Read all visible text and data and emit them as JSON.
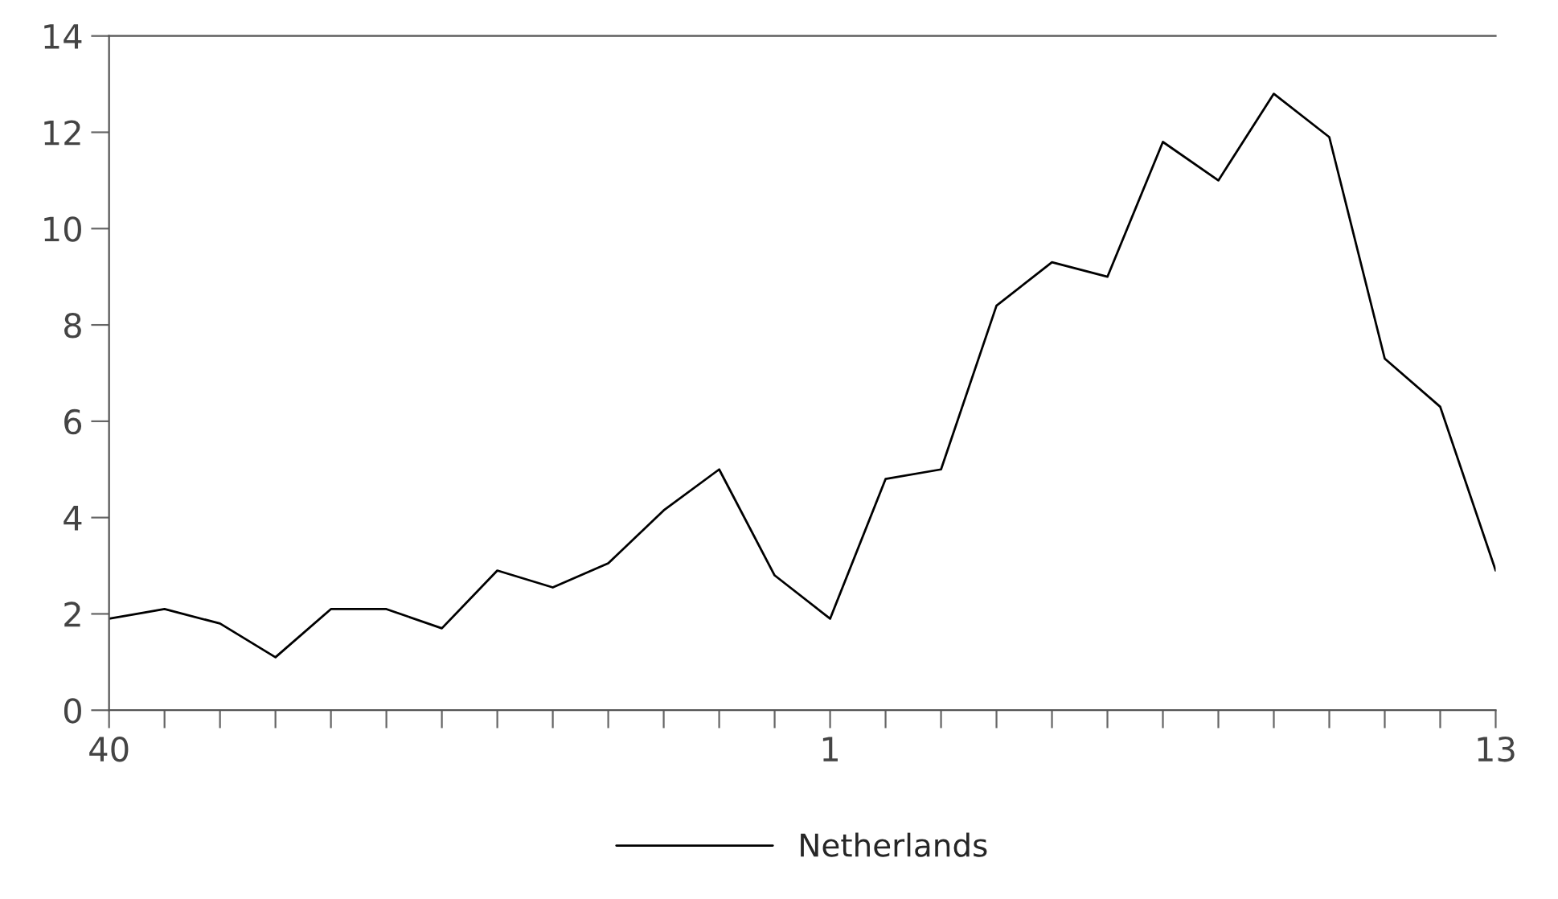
{
  "chart_data": {
    "type": "line",
    "categories": [
      "40",
      null,
      null,
      null,
      null,
      null,
      null,
      null,
      null,
      null,
      null,
      null,
      null,
      "1",
      null,
      null,
      null,
      null,
      null,
      null,
      null,
      null,
      null,
      null,
      null,
      "13"
    ],
    "series": [
      {
        "name": "Netherlands",
        "color": "#000000",
        "values": [
          1.9,
          2.1,
          1.8,
          1.1,
          2.1,
          2.1,
          1.7,
          2.9,
          2.55,
          3.05,
          4.15,
          5.0,
          2.8,
          1.9,
          4.8,
          5.0,
          8.4,
          9.3,
          9.0,
          11.8,
          11.0,
          12.8,
          11.9,
          7.3,
          6.3,
          2.9
        ]
      }
    ],
    "ylim": [
      0,
      14
    ],
    "yticks": [
      0,
      2,
      4,
      6,
      8,
      10,
      12,
      14
    ],
    "grid": false,
    "legend": "bottom",
    "marker": "none",
    "line_style": "solid"
  }
}
